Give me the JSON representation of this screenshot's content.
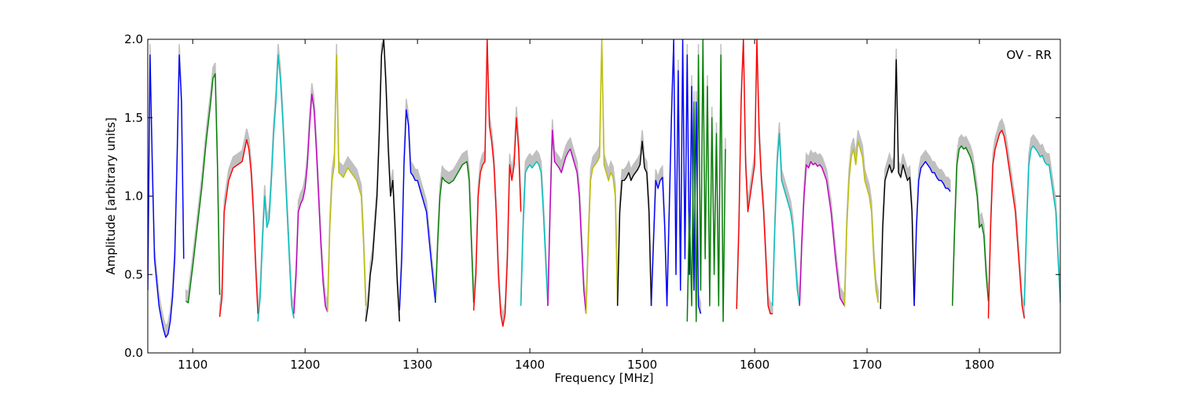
{
  "chart_data": {
    "type": "line",
    "title": "",
    "annotation": "OV - RR",
    "xlabel": "Frequency [MHz]",
    "ylabel": "Amplitude [arbitrary units]",
    "xlim": [
      1060,
      1872
    ],
    "ylim": [
      0.0,
      2.0
    ],
    "x_ticks": [
      1100,
      1200,
      1300,
      1400,
      1500,
      1600,
      1700,
      1800
    ],
    "y_ticks": [
      0.0,
      0.5,
      1.0,
      1.5,
      2.0
    ],
    "x_tick_labels": [
      "1100",
      "1200",
      "1300",
      "1400",
      "1500",
      "1600",
      "1700",
      "1800"
    ],
    "y_tick_labels": [
      "0.0",
      "0.5",
      "1.0",
      "1.5",
      "2.0"
    ],
    "grid": false,
    "legend": "none",
    "background_color": "#c0c0c0",
    "background_description": "grey envelope of raw amplitude behind the bands",
    "series": [
      {
        "color": "#0000ff",
        "x": [
          1060,
          1062,
          1064,
          1066,
          1068,
          1070,
          1072,
          1074,
          1076,
          1078,
          1080,
          1082,
          1084,
          1086,
          1088,
          1090,
          1092
        ],
        "y": [
          0.4,
          1.9,
          1.2,
          0.6,
          0.45,
          0.3,
          0.22,
          0.15,
          0.1,
          0.12,
          0.2,
          0.35,
          0.6,
          1.2,
          1.9,
          1.6,
          0.6
        ]
      },
      {
        "color": "#008000",
        "x": [
          1094,
          1096,
          1100,
          1104,
          1108,
          1112,
          1116,
          1118,
          1120,
          1122,
          1124
        ],
        "y": [
          0.33,
          0.32,
          0.55,
          0.8,
          1.05,
          1.35,
          1.6,
          1.75,
          1.78,
          1.2,
          0.37
        ]
      },
      {
        "color": "#ff0000",
        "x": [
          1124,
          1126,
          1128,
          1132,
          1136,
          1140,
          1144,
          1148,
          1150,
          1152,
          1154,
          1156,
          1158
        ],
        "y": [
          0.23,
          0.35,
          0.9,
          1.1,
          1.18,
          1.2,
          1.22,
          1.36,
          1.3,
          1.15,
          0.9,
          0.55,
          0.25
        ]
      },
      {
        "color": "#00bfbf",
        "x": [
          1158,
          1160,
          1162,
          1164,
          1166,
          1168,
          1170,
          1172,
          1174,
          1176,
          1178,
          1180,
          1182,
          1184,
          1186,
          1188,
          1190
        ],
        "y": [
          0.2,
          0.35,
          0.7,
          1.0,
          0.8,
          0.85,
          1.1,
          1.4,
          1.6,
          1.9,
          1.75,
          1.5,
          1.2,
          0.9,
          0.6,
          0.3,
          0.22
        ]
      },
      {
        "color": "#bf00bf",
        "x": [
          1190,
          1192,
          1194,
          1196,
          1198,
          1200,
          1202,
          1204,
          1206,
          1208,
          1210,
          1212,
          1214,
          1216,
          1218,
          1220
        ],
        "y": [
          0.25,
          0.5,
          0.9,
          0.95,
          0.98,
          1.05,
          1.2,
          1.45,
          1.65,
          1.55,
          1.3,
          1.0,
          0.7,
          0.45,
          0.3,
          0.26
        ]
      },
      {
        "color": "#bfbf00",
        "x": [
          1220,
          1222,
          1224,
          1226,
          1228,
          1230,
          1234,
          1238,
          1242,
          1246,
          1250,
          1252,
          1254
        ],
        "y": [
          0.26,
          0.8,
          1.1,
          1.2,
          1.9,
          1.15,
          1.12,
          1.18,
          1.14,
          1.1,
          1.0,
          0.7,
          0.3
        ]
      },
      {
        "color": "#000000",
        "x": [
          1254,
          1256,
          1258,
          1260,
          1262,
          1264,
          1266,
          1268,
          1270,
          1272,
          1274,
          1276,
          1278,
          1280,
          1282,
          1284
        ],
        "y": [
          0.2,
          0.3,
          0.5,
          0.6,
          0.8,
          1.0,
          1.4,
          1.9,
          2.0,
          1.7,
          1.3,
          1.0,
          1.1,
          0.8,
          0.45,
          0.2
        ]
      },
      {
        "color": "#0000ff",
        "x": [
          1284,
          1286,
          1288,
          1290,
          1292,
          1294,
          1296,
          1298,
          1300,
          1304,
          1308,
          1312,
          1316
        ],
        "y": [
          0.27,
          0.6,
          1.2,
          1.55,
          1.45,
          1.15,
          1.13,
          1.1,
          1.1,
          1.0,
          0.9,
          0.6,
          0.32
        ]
      },
      {
        "color": "#008000",
        "x": [
          1316,
          1318,
          1320,
          1322,
          1324,
          1328,
          1332,
          1336,
          1340,
          1344,
          1346,
          1348,
          1350
        ],
        "y": [
          0.33,
          0.7,
          1.0,
          1.12,
          1.1,
          1.08,
          1.1,
          1.15,
          1.2,
          1.22,
          1.1,
          0.7,
          0.32
        ]
      },
      {
        "color": "#ff0000",
        "x": [
          1350,
          1352,
          1354,
          1356,
          1358,
          1360,
          1362,
          1364,
          1366,
          1368,
          1370,
          1372,
          1374,
          1376,
          1378,
          1380,
          1382,
          1384,
          1386,
          1388,
          1390,
          1392
        ],
        "y": [
          0.27,
          0.5,
          1.0,
          1.15,
          1.2,
          1.22,
          2.0,
          1.45,
          1.35,
          1.2,
          0.9,
          0.5,
          0.25,
          0.17,
          0.25,
          0.6,
          1.2,
          1.1,
          1.2,
          1.5,
          1.3,
          0.9
        ]
      },
      {
        "color": "#00bfbf",
        "x": [
          1392,
          1394,
          1396,
          1398,
          1400,
          1402,
          1404,
          1406,
          1408,
          1410,
          1412,
          1414,
          1416
        ],
        "y": [
          0.3,
          0.8,
          1.15,
          1.18,
          1.2,
          1.18,
          1.2,
          1.22,
          1.2,
          1.15,
          0.9,
          0.6,
          0.3
        ]
      },
      {
        "color": "#bf00bf",
        "x": [
          1416,
          1418,
          1420,
          1422,
          1424,
          1426,
          1428,
          1430,
          1432,
          1434,
          1436,
          1438,
          1440,
          1442,
          1444,
          1446,
          1448,
          1450
        ],
        "y": [
          0.3,
          0.9,
          1.42,
          1.22,
          1.2,
          1.18,
          1.15,
          1.2,
          1.25,
          1.28,
          1.3,
          1.25,
          1.2,
          1.15,
          1.0,
          0.7,
          0.4,
          0.25
        ]
      },
      {
        "color": "#bfbf00",
        "x": [
          1450,
          1452,
          1454,
          1456,
          1458,
          1460,
          1462,
          1464,
          1466,
          1468,
          1470,
          1472,
          1474,
          1476,
          1478
        ],
        "y": [
          0.25,
          0.7,
          1.1,
          1.18,
          1.2,
          1.22,
          1.25,
          2.0,
          1.2,
          1.15,
          1.1,
          1.15,
          1.12,
          1.0,
          0.3
        ]
      },
      {
        "color": "#000000",
        "x": [
          1478,
          1480,
          1482,
          1484,
          1486,
          1488,
          1490,
          1492,
          1494,
          1496,
          1498,
          1500,
          1502,
          1504,
          1506,
          1508
        ],
        "y": [
          0.3,
          0.9,
          1.1,
          1.1,
          1.12,
          1.15,
          1.1,
          1.13,
          1.15,
          1.17,
          1.2,
          1.35,
          1.18,
          1.15,
          0.9,
          0.3
        ]
      },
      {
        "color": "#0000ff",
        "x": [
          1508,
          1510,
          1512,
          1514,
          1516,
          1518,
          1520,
          1522,
          1524,
          1526,
          1528,
          1530,
          1532,
          1534,
          1536,
          1538,
          1540,
          1542,
          1544,
          1546,
          1548,
          1550,
          1552
        ],
        "y": [
          0.3,
          0.7,
          1.1,
          1.05,
          1.1,
          1.12,
          0.8,
          0.3,
          0.9,
          1.5,
          2.0,
          0.5,
          1.8,
          0.4,
          2.0,
          0.6,
          1.9,
          0.5,
          1.7,
          0.4,
          1.6,
          0.3,
          0.25
        ]
      },
      {
        "color": "#008000",
        "x": [
          1540,
          1542,
          1544,
          1546,
          1548,
          1550,
          1552,
          1554,
          1556,
          1558,
          1560,
          1562,
          1564,
          1566,
          1568,
          1570,
          1572,
          1574
        ],
        "y": [
          0.2,
          0.9,
          0.3,
          1.6,
          0.2,
          1.9,
          0.4,
          2.0,
          0.6,
          1.7,
          0.3,
          1.5,
          0.5,
          1.4,
          0.3,
          1.9,
          0.2,
          1.3
        ]
      },
      {
        "color": "#ff0000",
        "x": [
          1584,
          1586,
          1588,
          1590,
          1592,
          1594,
          1596,
          1598,
          1600,
          1602,
          1604,
          1606,
          1608,
          1610,
          1612,
          1614,
          1616
        ],
        "y": [
          0.28,
          0.8,
          1.6,
          2.0,
          1.2,
          0.9,
          1.0,
          1.1,
          1.2,
          2.0,
          1.4,
          1.1,
          0.9,
          0.6,
          0.3,
          0.25,
          0.25
        ]
      },
      {
        "color": "#00bfbf",
        "x": [
          1616,
          1618,
          1620,
          1622,
          1624,
          1626,
          1628,
          1630,
          1632,
          1634,
          1636,
          1638,
          1640
        ],
        "y": [
          0.3,
          0.8,
          1.2,
          1.4,
          1.1,
          1.05,
          1.0,
          0.95,
          0.9,
          0.8,
          0.6,
          0.4,
          0.3
        ]
      },
      {
        "color": "#bf00bf",
        "x": [
          1640,
          1642,
          1644,
          1646,
          1648,
          1650,
          1652,
          1654,
          1656,
          1658,
          1660,
          1664,
          1668,
          1672,
          1676,
          1680
        ],
        "y": [
          0.3,
          0.7,
          1.0,
          1.2,
          1.18,
          1.22,
          1.2,
          1.21,
          1.19,
          1.2,
          1.18,
          1.1,
          0.9,
          0.6,
          0.35,
          0.3
        ]
      },
      {
        "color": "#bfbf00",
        "x": [
          1680,
          1682,
          1684,
          1686,
          1688,
          1690,
          1692,
          1694,
          1696,
          1698,
          1700,
          1702,
          1704,
          1706,
          1708,
          1710
        ],
        "y": [
          0.3,
          0.8,
          1.1,
          1.25,
          1.3,
          1.2,
          1.35,
          1.3,
          1.25,
          1.1,
          1.05,
          1.0,
          0.9,
          0.6,
          0.4,
          0.32
        ]
      },
      {
        "color": "#000000",
        "x": [
          1712,
          1714,
          1716,
          1718,
          1720,
          1722,
          1724,
          1726,
          1728,
          1730,
          1732,
          1734,
          1736,
          1738,
          1740,
          1742
        ],
        "y": [
          0.28,
          0.8,
          1.1,
          1.15,
          1.2,
          1.15,
          1.18,
          1.87,
          1.15,
          1.12,
          1.2,
          1.15,
          1.1,
          1.12,
          0.9,
          0.3
        ]
      },
      {
        "color": "#0000ff",
        "x": [
          1742,
          1744,
          1746,
          1748,
          1750,
          1752,
          1754,
          1756,
          1758,
          1760,
          1762,
          1764,
          1766,
          1768,
          1770,
          1772,
          1774
        ],
        "y": [
          0.3,
          0.8,
          1.1,
          1.18,
          1.2,
          1.22,
          1.2,
          1.18,
          1.15,
          1.15,
          1.12,
          1.1,
          1.1,
          1.08,
          1.05,
          1.05,
          1.03
        ]
      },
      {
        "color": "#008000",
        "x": [
          1776,
          1778,
          1780,
          1782,
          1784,
          1786,
          1788,
          1790,
          1792,
          1794,
          1796,
          1798,
          1800,
          1802,
          1804,
          1806,
          1808
        ],
        "y": [
          0.3,
          0.8,
          1.2,
          1.3,
          1.32,
          1.3,
          1.31,
          1.28,
          1.25,
          1.2,
          1.1,
          1.0,
          0.8,
          0.82,
          0.75,
          0.5,
          0.33
        ]
      },
      {
        "color": "#ff0000",
        "x": [
          1808,
          1810,
          1812,
          1814,
          1816,
          1818,
          1820,
          1822,
          1824,
          1826,
          1828,
          1830,
          1832,
          1834,
          1836,
          1838,
          1840
        ],
        "y": [
          0.22,
          0.8,
          1.2,
          1.3,
          1.35,
          1.4,
          1.42,
          1.38,
          1.3,
          1.2,
          1.1,
          1.0,
          0.9,
          0.7,
          0.5,
          0.3,
          0.22
        ]
      },
      {
        "color": "#00bfbf",
        "x": [
          1840,
          1842,
          1844,
          1846,
          1848,
          1850,
          1852,
          1854,
          1856,
          1858,
          1860,
          1862,
          1864,
          1866,
          1868,
          1870,
          1872
        ],
        "y": [
          0.3,
          0.8,
          1.2,
          1.3,
          1.32,
          1.3,
          1.28,
          1.25,
          1.26,
          1.22,
          1.2,
          1.2,
          1.1,
          1.0,
          0.9,
          0.6,
          0.32
        ]
      }
    ]
  }
}
